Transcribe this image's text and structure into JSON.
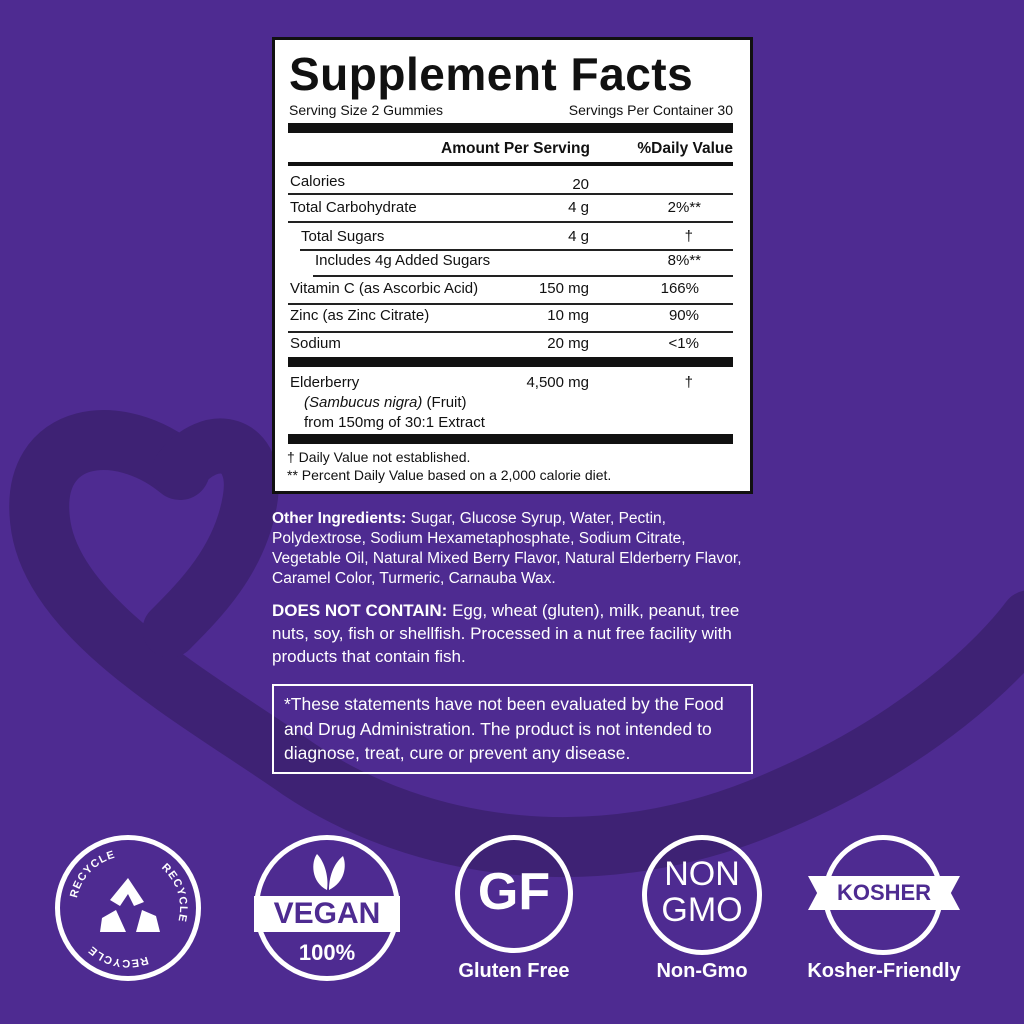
{
  "colors": {
    "background": "#4e2b91",
    "heart": "#3e2274",
    "label_bg": "#ffffff",
    "text": "#111111"
  },
  "facts": {
    "title": "Supplement Facts",
    "serving_size": "Serving Size 2 Gummies",
    "servings_per_container": "Servings Per Container 30",
    "col_amount": "Amount Per Serving",
    "col_dv": "%Daily Value",
    "rows": [
      {
        "name": "Calories",
        "amount": "20",
        "dv": ""
      },
      {
        "name": "Total Carbohydrate",
        "amount": "4 g",
        "dv": "2%**"
      },
      {
        "name": "Total Sugars",
        "amount": "4 g",
        "dv": "†"
      },
      {
        "name": "Includes 4g Added Sugars",
        "amount": "",
        "dv": "8%**"
      },
      {
        "name": "Vitamin C (as Ascorbic Acid)",
        "amount": "150 mg",
        "dv": "166%"
      },
      {
        "name": "Zinc (as Zinc Citrate)",
        "amount": "10 mg",
        "dv": "90%"
      },
      {
        "name": "Sodium",
        "amount": "20 mg",
        "dv": "<1%"
      }
    ],
    "elderberry": {
      "name": "Elderberry",
      "latin": "(Sambucus nigra)",
      "part": " (Fruit)",
      "extract": "from 150mg of 30:1 Extract",
      "amount": "4,500 mg",
      "dv": "†"
    },
    "footnote1": "† Daily Value not established.",
    "footnote2": "** Percent Daily Value based on a 2,000 calorie diet."
  },
  "other_ingredients": {
    "label": "Other Ingredients:",
    "text": " Sugar, Glucose Syrup, Water, Pectin, Polydextrose, Sodium Hexametaphosphate, Sodium Citrate, Vegetable Oil, Natural Mixed Berry Flavor, Natural Elderberry Flavor, Caramel Color, Turmeric, Carnauba Wax."
  },
  "does_not_contain": {
    "label": "DOES NOT CONTAIN:",
    "text": " Egg, wheat (gluten), milk, peanut, tree nuts, soy, fish or shellfish. Processed in a nut free facility with products that contain fish."
  },
  "disclaimer": "*These statements have not been evaluated by the Food and Drug Administration. The product is not intended to diagnose, treat, cure or prevent any disease.",
  "badges": {
    "recycle": {
      "ring_text": "RECYCLE",
      "icon": "recycle-icon"
    },
    "vegan": {
      "text": "VEGAN",
      "sub": "100%",
      "icon": "leaf-icon"
    },
    "gf": {
      "text": "GF",
      "label": "Gluten Free"
    },
    "nongmo": {
      "line1": "NON",
      "line2": "GMO",
      "label": "Non-Gmo"
    },
    "kosher": {
      "text": "KOSHER",
      "label": "Kosher-Friendly"
    }
  }
}
